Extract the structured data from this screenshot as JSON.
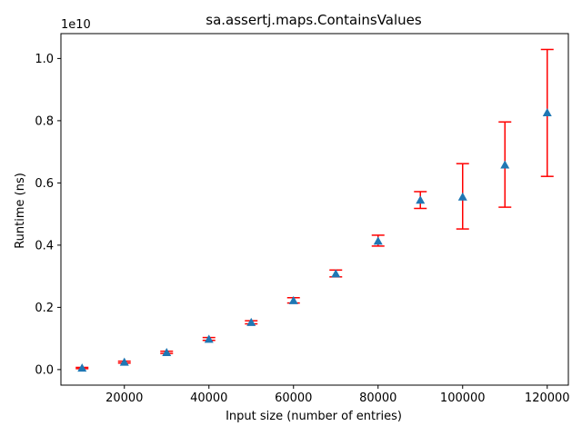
{
  "chart_data": {
    "type": "scatter",
    "title": "sa.assertj.maps.ContainsValues",
    "xlabel": "Input size (number of entries)",
    "ylabel": "Runtime (ns)",
    "y_offset_text": "1e10",
    "xlim": [
      5000,
      125000
    ],
    "ylim": [
      -0.05,
      1.08
    ],
    "x_ticks": [
      20000,
      40000,
      60000,
      80000,
      100000,
      120000
    ],
    "x_tick_labels": [
      "20000",
      "40000",
      "60000",
      "80000",
      "100000",
      "120000"
    ],
    "y_ticks": [
      0.0,
      0.2,
      0.4,
      0.6,
      0.8,
      1.0
    ],
    "y_tick_labels": [
      "0.0",
      "0.2",
      "0.4",
      "0.6",
      "0.8",
      "1.0"
    ],
    "grid": false,
    "marker": "triangle",
    "marker_color": "#1f77b4",
    "errorbar_color": "#ff0000",
    "points": [
      {
        "x": 10000,
        "y": 0.005,
        "low": 0.003,
        "high": 0.007
      },
      {
        "x": 20000,
        "y": 0.024,
        "low": 0.021,
        "high": 0.027
      },
      {
        "x": 30000,
        "y": 0.055,
        "low": 0.052,
        "high": 0.059
      },
      {
        "x": 40000,
        "y": 0.098,
        "low": 0.094,
        "high": 0.103
      },
      {
        "x": 50000,
        "y": 0.152,
        "low": 0.147,
        "high": 0.157
      },
      {
        "x": 60000,
        "y": 0.222,
        "low": 0.214,
        "high": 0.231
      },
      {
        "x": 70000,
        "y": 0.308,
        "low": 0.298,
        "high": 0.32
      },
      {
        "x": 80000,
        "y": 0.413,
        "low": 0.397,
        "high": 0.432
      },
      {
        "x": 90000,
        "y": 0.545,
        "low": 0.518,
        "high": 0.572
      },
      {
        "x": 100000,
        "y": 0.555,
        "low": 0.452,
        "high": 0.662
      },
      {
        "x": 110000,
        "y": 0.658,
        "low": 0.522,
        "high": 0.796
      },
      {
        "x": 120000,
        "y": 0.826,
        "low": 0.621,
        "high": 1.029
      }
    ]
  }
}
